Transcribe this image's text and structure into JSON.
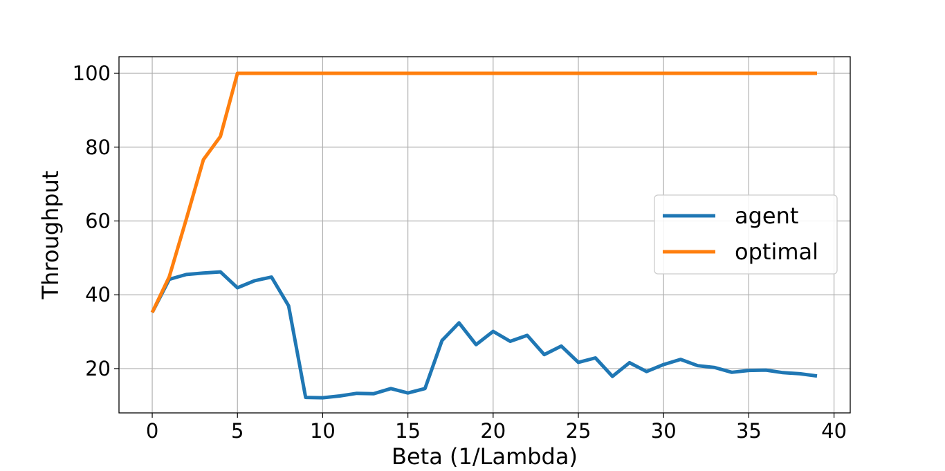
{
  "chart_data": {
    "type": "line",
    "title": "",
    "xlabel": "Beta (1/Lambda)",
    "ylabel": "Throughput",
    "xlim": [
      -1.95,
      40.95
    ],
    "ylim": [
      8,
      104.5
    ],
    "xticks": [
      0,
      5,
      10,
      15,
      20,
      25,
      30,
      35,
      40
    ],
    "yticks": [
      20,
      40,
      60,
      80,
      100
    ],
    "grid": true,
    "legend_position": "center-right",
    "x": [
      0,
      1,
      2,
      3,
      4,
      5,
      6,
      7,
      8,
      9,
      10,
      11,
      12,
      13,
      14,
      15,
      16,
      17,
      18,
      19,
      20,
      21,
      22,
      23,
      24,
      25,
      26,
      27,
      28,
      29,
      30,
      31,
      32,
      33,
      34,
      35,
      36,
      37,
      38,
      39
    ],
    "series": [
      {
        "name": "agent",
        "color": "#1f77b4",
        "values": [
          35.2,
          44.2,
          45.5,
          45.9,
          46.2,
          41.9,
          43.8,
          44.8,
          37.0,
          12.2,
          12.1,
          12.6,
          13.3,
          13.2,
          14.6,
          13.4,
          14.6,
          27.6,
          32.4,
          26.5,
          30.1,
          27.4,
          29.0,
          23.8,
          26.1,
          21.7,
          22.9,
          17.9,
          21.6,
          19.2,
          21.1,
          22.5,
          20.8,
          20.3,
          19.0,
          19.5,
          19.6,
          18.9,
          18.6,
          18.0
        ]
      },
      {
        "name": "optimal",
        "color": "#ff7f0e",
        "values": [
          35.2,
          44.9,
          60.5,
          76.6,
          82.9,
          100,
          100,
          100,
          100,
          100,
          100,
          100,
          100,
          100,
          100,
          100,
          100,
          100,
          100,
          100,
          100,
          100,
          100,
          100,
          100,
          100,
          100,
          100,
          100,
          100,
          100,
          100,
          100,
          100,
          100,
          100,
          100,
          100,
          100,
          100
        ]
      }
    ]
  }
}
